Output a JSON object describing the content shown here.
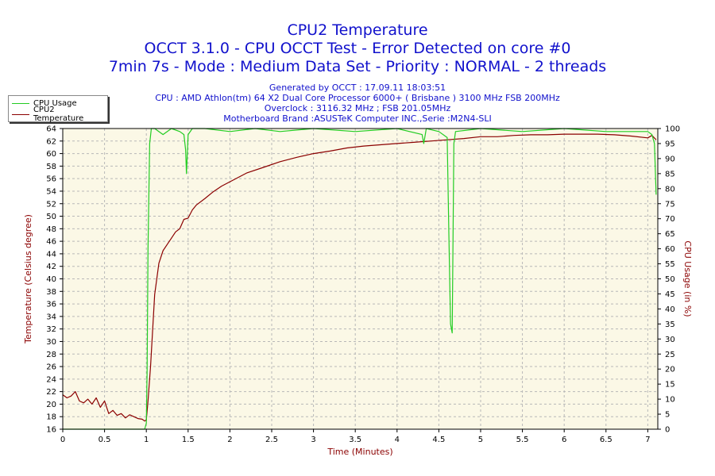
{
  "header": {
    "title": "CPU2 Temperature",
    "subtitle1": "OCCT 3.1.0 - CPU OCCT Test - Error Detected on core #0",
    "subtitle2": "7min 7s - Mode : Medium Data Set - Priority : NORMAL - 2 threads",
    "info1": "Generated by OCCT : 17.09.11 18:03:51",
    "info2": "CPU : AMD Athlon(tm) 64 X2 Dual Core Processor 6000+ ( Brisbane ) 3100 MHz FSB 200MHz",
    "info3": "Overclock : 3116.32 MHz ; FSB 201.05MHz",
    "info4": "Motherboard Brand :ASUSTeK Computer INC.,Serie :M2N4-SLI"
  },
  "legend": {
    "items": [
      {
        "label": "CPU Usage",
        "color": "#22cc22"
      },
      {
        "label": "CPU2 Temperature",
        "color": "#8b0000"
      }
    ]
  },
  "colors": {
    "plot_bg": "#fbf8e6",
    "grid": "#b8b8b8",
    "usage": "#22cc22",
    "temp": "#8b0000",
    "title": "#1111cc"
  },
  "chart_data": {
    "type": "line",
    "xlabel": "Time (Minutes)",
    "ylabel": "Temperature (Celsius degree)",
    "y2label": "CPU Usage (in %)",
    "xlim": [
      0,
      7.12
    ],
    "ylim": [
      16,
      64
    ],
    "y2lim": [
      0,
      100
    ],
    "x_ticks": [
      "0",
      "0.5",
      "1",
      "1.5",
      "2",
      "2.5",
      "3",
      "3.5",
      "4",
      "4.5",
      "5",
      "5.5",
      "6",
      "6.5",
      "7"
    ],
    "y_ticks": [
      "16",
      "18",
      "20",
      "22",
      "24",
      "26",
      "28",
      "30",
      "32",
      "34",
      "36",
      "38",
      "40",
      "42",
      "44",
      "46",
      "48",
      "50",
      "52",
      "54",
      "56",
      "58",
      "60",
      "62",
      "64"
    ],
    "y2_ticks": [
      "0",
      "5",
      "10",
      "15",
      "20",
      "25",
      "30",
      "35",
      "40",
      "45",
      "50",
      "55",
      "60",
      "65",
      "70",
      "75",
      "80",
      "85",
      "90",
      "95",
      "100"
    ],
    "series": [
      {
        "name": "CPU2 Temperature",
        "axis": "left",
        "x": [
          0,
          0.05,
          0.1,
          0.15,
          0.2,
          0.25,
          0.3,
          0.35,
          0.4,
          0.45,
          0.5,
          0.55,
          0.6,
          0.65,
          0.7,
          0.75,
          0.8,
          0.85,
          0.9,
          0.95,
          0.98,
          1.0,
          1.02,
          1.05,
          1.1,
          1.15,
          1.2,
          1.25,
          1.3,
          1.35,
          1.4,
          1.45,
          1.5,
          1.55,
          1.6,
          1.7,
          1.8,
          1.9,
          2.0,
          2.2,
          2.4,
          2.6,
          2.8,
          3.0,
          3.2,
          3.4,
          3.6,
          3.8,
          4.0,
          4.2,
          4.4,
          4.6,
          4.8,
          5.0,
          5.2,
          5.4,
          5.6,
          5.8,
          6.0,
          6.2,
          6.4,
          6.6,
          6.8,
          7.0,
          7.05,
          7.1
        ],
        "values": [
          21.5,
          21.0,
          21.3,
          22.0,
          20.5,
          20.2,
          20.8,
          20.0,
          21.0,
          19.5,
          20.5,
          18.5,
          19.0,
          18.2,
          18.5,
          17.8,
          18.3,
          18.0,
          17.7,
          17.6,
          17.3,
          17.5,
          20.5,
          26.0,
          37.5,
          42.5,
          44.5,
          45.5,
          46.5,
          47.5,
          48.0,
          49.5,
          49.7,
          51.0,
          51.8,
          52.8,
          53.9,
          54.8,
          55.5,
          56.9,
          57.8,
          58.7,
          59.4,
          60.0,
          60.4,
          60.9,
          61.2,
          61.4,
          61.6,
          61.8,
          62.0,
          62.2,
          62.4,
          62.7,
          62.7,
          62.9,
          63.0,
          63.0,
          63.1,
          63.1,
          63.1,
          63.0,
          62.8,
          62.5,
          62.9,
          62.2
        ]
      },
      {
        "name": "CPU Usage",
        "axis": "right",
        "x": [
          0,
          0.5,
          0.96,
          0.98,
          1.0,
          1.01,
          1.02,
          1.04,
          1.06,
          1.1,
          1.2,
          1.3,
          1.4,
          1.45,
          1.47,
          1.48,
          1.5,
          1.55,
          1.7,
          2.0,
          2.3,
          2.6,
          3.0,
          3.5,
          4.0,
          4.3,
          4.32,
          4.35,
          4.5,
          4.6,
          4.62,
          4.64,
          4.66,
          4.68,
          4.7,
          5.0,
          5.5,
          6.0,
          6.5,
          7.0,
          7.05,
          7.08,
          7.1
        ],
        "values": [
          0,
          0,
          0,
          0,
          2,
          20,
          60,
          95,
          100,
          100,
          98,
          100,
          99,
          98,
          93,
          85,
          98,
          100,
          100,
          99,
          100,
          99,
          100,
          99,
          100,
          98,
          95,
          100,
          99,
          97,
          65,
          35,
          32,
          95,
          99,
          100,
          99,
          100,
          99,
          99,
          98,
          95,
          78
        ]
      }
    ]
  }
}
